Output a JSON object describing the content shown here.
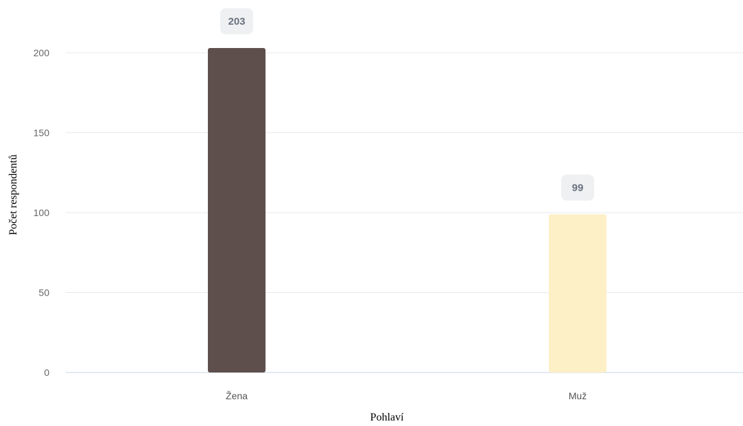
{
  "chart_data": {
    "type": "bar",
    "categories": [
      "Žena",
      "Muž"
    ],
    "values": [
      203,
      99
    ],
    "data_labels": [
      "203",
      "99"
    ],
    "xlabel": "Pohlaví",
    "ylabel": "Počet respondentů",
    "ylim": [
      0,
      220
    ],
    "yticks": [
      0,
      50,
      100,
      150,
      200
    ],
    "ytick_labels": [
      "0",
      "50",
      "100",
      "150",
      "200"
    ],
    "bar_colors": [
      "#5e4f4d",
      "#fdefc6"
    ],
    "grid": true,
    "legend": "none"
  }
}
